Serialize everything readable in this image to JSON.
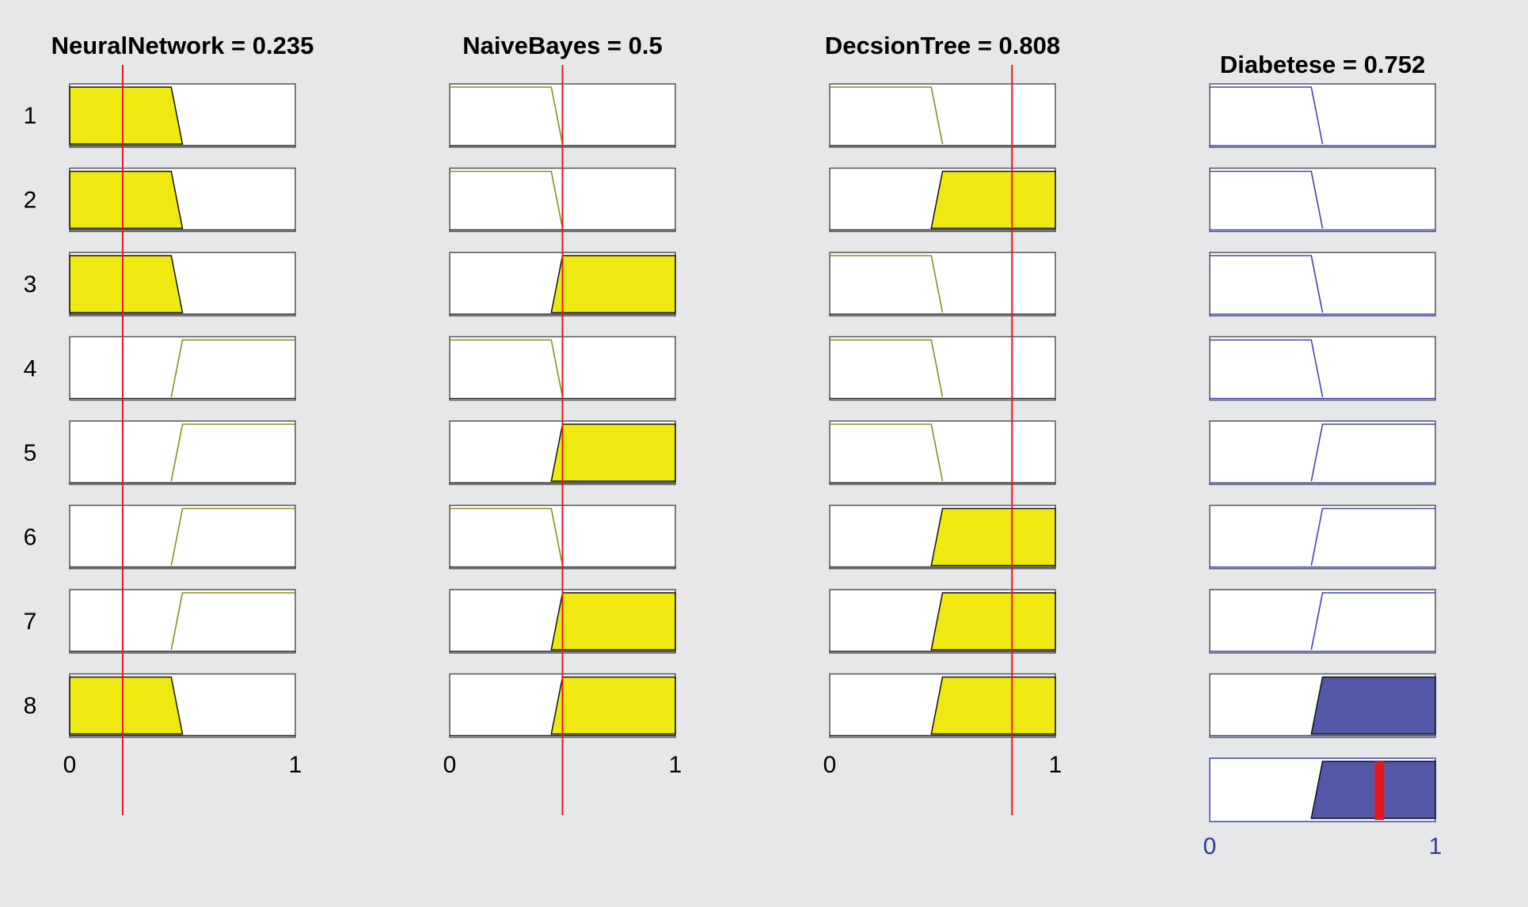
{
  "window": {
    "title": ""
  },
  "chart_data": {
    "type": "fuzzy-rule-viewer",
    "rule_labels": [
      "1",
      "2",
      "3",
      "4",
      "5",
      "6",
      "7",
      "8"
    ],
    "colors": {
      "background": "#e6e7e8",
      "input_fill": "#f0e811",
      "input_outline": "#8f8a1f",
      "output_fill": "#5359a8",
      "output_outline": "#3d44b5",
      "indicator_line": "#e8161e",
      "axis_text": "#2f3a9a"
    },
    "inputs": [
      {
        "name": "NeuralNetwork",
        "value": 0.235,
        "title": "NeuralNetwork = 0.235",
        "axis_min": "0",
        "axis_max": "1",
        "rules": [
          {
            "mf": "low",
            "active": true
          },
          {
            "mf": "low",
            "active": true
          },
          {
            "mf": "low",
            "active": true
          },
          {
            "mf": "high",
            "active": false
          },
          {
            "mf": "high",
            "active": false
          },
          {
            "mf": "high",
            "active": false
          },
          {
            "mf": "high",
            "active": false
          },
          {
            "mf": "low",
            "active": true
          }
        ]
      },
      {
        "name": "NaiveBayes",
        "value": 0.5,
        "title": "NaiveBayes = 0.5",
        "axis_min": "0",
        "axis_max": "1",
        "rules": [
          {
            "mf": "low",
            "active": false
          },
          {
            "mf": "low",
            "active": false
          },
          {
            "mf": "high",
            "active": true
          },
          {
            "mf": "low",
            "active": false
          },
          {
            "mf": "high",
            "active": true
          },
          {
            "mf": "low",
            "active": false
          },
          {
            "mf": "high",
            "active": true
          },
          {
            "mf": "high",
            "active": true
          }
        ]
      },
      {
        "name": "DecsionTree",
        "value": 0.808,
        "title": "DecsionTree = 0.808",
        "axis_min": "0",
        "axis_max": "1",
        "rules": [
          {
            "mf": "low",
            "active": false
          },
          {
            "mf": "high",
            "active": true
          },
          {
            "mf": "low",
            "active": false
          },
          {
            "mf": "low",
            "active": false
          },
          {
            "mf": "low",
            "active": false
          },
          {
            "mf": "high",
            "active": true
          },
          {
            "mf": "high",
            "active": true
          },
          {
            "mf": "high",
            "active": true
          }
        ]
      }
    ],
    "output": {
      "name": "Diabetese",
      "value": 0.752,
      "title": "Diabetese = 0.752",
      "axis_min": "0",
      "axis_max": "1",
      "rules": [
        {
          "mf": "low",
          "active": false
        },
        {
          "mf": "low",
          "active": false
        },
        {
          "mf": "low",
          "active": false
        },
        {
          "mf": "low",
          "active": false
        },
        {
          "mf": "high",
          "active": false
        },
        {
          "mf": "high",
          "active": false
        },
        {
          "mf": "high",
          "active": false
        },
        {
          "mf": "high",
          "active": true
        }
      ],
      "aggregate": {
        "mf": "high",
        "active": true
      }
    }
  }
}
